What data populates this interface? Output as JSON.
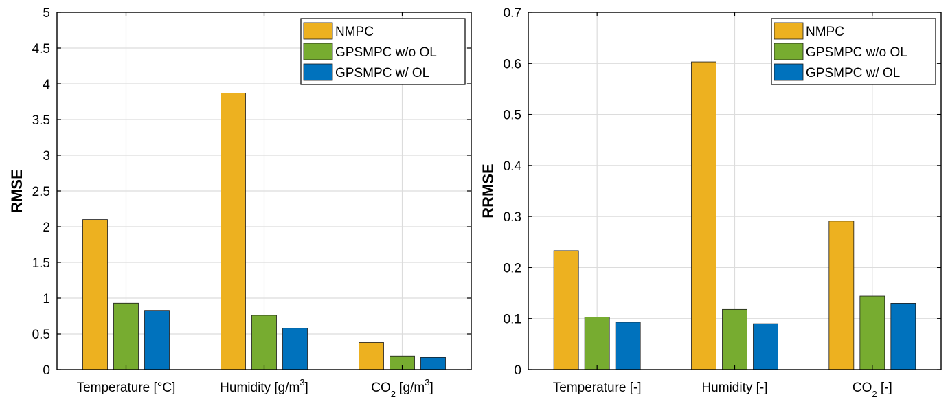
{
  "colors": {
    "NMPC": "#EDB120",
    "GPSMPC w/o OL": "#77AC30",
    "GPSMPC w/ OL": "#0072BD",
    "grid": "#DCDCDC",
    "axis": "#000000"
  },
  "legend_labels": [
    "NMPC",
    "GPSMPC w/o OL",
    "GPSMPC w/ OL"
  ],
  "chart_data": [
    {
      "type": "bar",
      "ylabel": "RMSE",
      "ylim": [
        0,
        5
      ],
      "yticks": [
        0,
        0.5,
        1,
        1.5,
        2,
        2.5,
        3,
        3.5,
        4,
        4.5,
        5
      ],
      "ytick_labels": [
        "0",
        "0.5",
        "1",
        "1.5",
        "2",
        "2.5",
        "3",
        "3.5",
        "4",
        "4.5",
        "5"
      ],
      "categories": [
        {
          "pre": "Temperature [°C]",
          "sub": "",
          "mid": "",
          "sup": "",
          "post": ""
        },
        {
          "pre": "Humidity [g/m",
          "sub": "",
          "mid": "",
          "sup": "3",
          "post": "]"
        },
        {
          "pre": "CO",
          "sub": "2",
          "mid": " [g/m",
          "sup": "3",
          "post": "]"
        }
      ],
      "series": [
        {
          "name": "NMPC",
          "values": [
            2.1,
            3.87,
            0.38
          ]
        },
        {
          "name": "GPSMPC w/o OL",
          "values": [
            0.93,
            0.76,
            0.19
          ]
        },
        {
          "name": "GPSMPC w/ OL",
          "values": [
            0.83,
            0.58,
            0.17
          ]
        }
      ],
      "grid": true,
      "legend": "top-right"
    },
    {
      "type": "bar",
      "ylabel": "RRMSE",
      "ylim": [
        0,
        0.7
      ],
      "yticks": [
        0,
        0.1,
        0.2,
        0.3,
        0.4,
        0.5,
        0.6,
        0.7
      ],
      "ytick_labels": [
        "0",
        "0.1",
        "0.2",
        "0.3",
        "0.4",
        "0.5",
        "0.6",
        "0.7"
      ],
      "categories": [
        {
          "pre": "Temperature [-]",
          "sub": "",
          "mid": "",
          "sup": "",
          "post": ""
        },
        {
          "pre": "Humidity [-]",
          "sub": "",
          "mid": "",
          "sup": "",
          "post": ""
        },
        {
          "pre": "CO",
          "sub": "2",
          "mid": " [-]",
          "sup": "",
          "post": ""
        }
      ],
      "series": [
        {
          "name": "NMPC",
          "values": [
            0.233,
            0.603,
            0.291
          ]
        },
        {
          "name": "GPSMPC w/o OL",
          "values": [
            0.103,
            0.118,
            0.144
          ]
        },
        {
          "name": "GPSMPC w/ OL",
          "values": [
            0.093,
            0.09,
            0.13
          ]
        }
      ],
      "grid": true,
      "legend": "top-right"
    }
  ]
}
